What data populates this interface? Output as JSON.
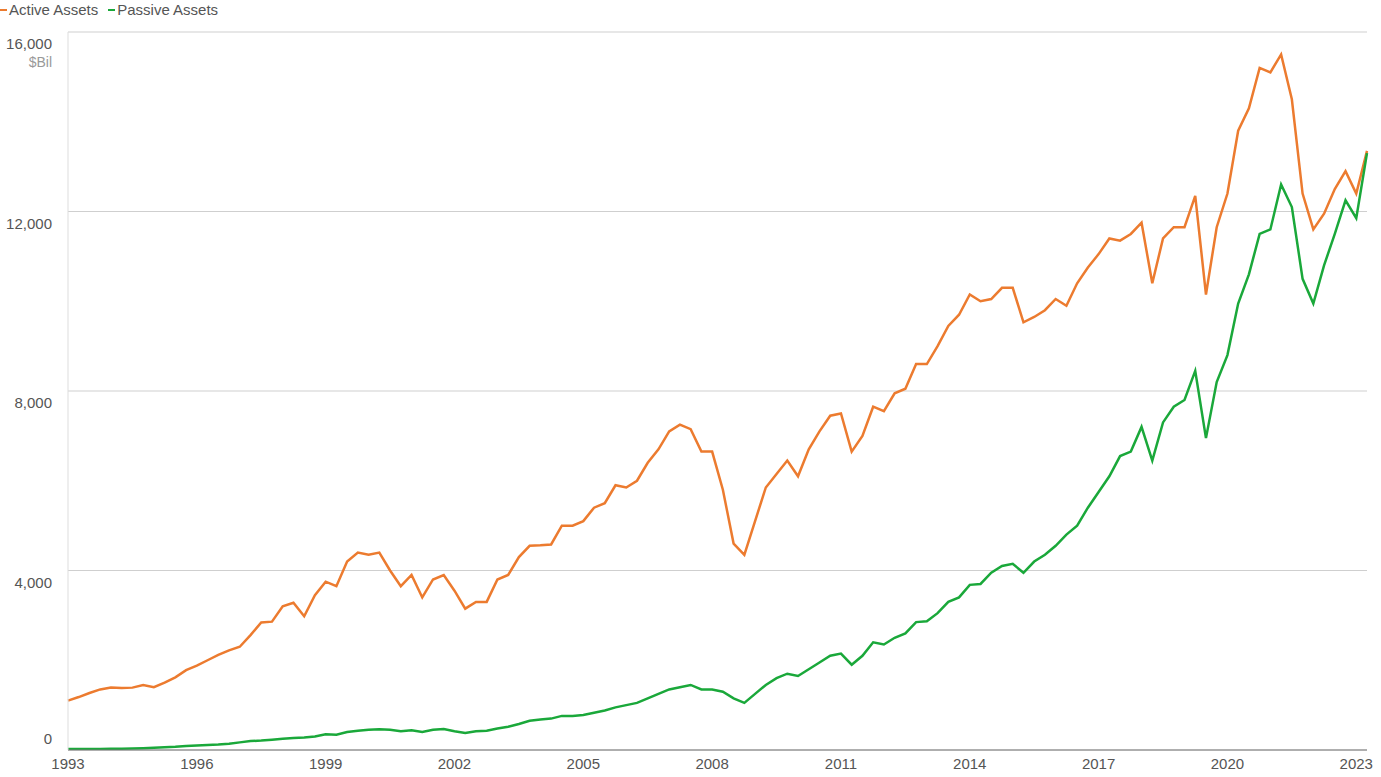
{
  "chart_data": {
    "type": "line",
    "y_label": "$Bil",
    "legend": "top-left",
    "grid": true,
    "categories": [
      "1993",
      null,
      null,
      null,
      null,
      null,
      null,
      null,
      null,
      null,
      null,
      null,
      "1996",
      null,
      null,
      null,
      null,
      null,
      null,
      null,
      null,
      null,
      null,
      null,
      "1999",
      null,
      null,
      null,
      null,
      null,
      null,
      null,
      null,
      null,
      null,
      null,
      "2002",
      null,
      null,
      null,
      null,
      null,
      null,
      null,
      null,
      null,
      null,
      null,
      "2005",
      null,
      null,
      null,
      null,
      null,
      null,
      null,
      null,
      null,
      null,
      null,
      "2008",
      null,
      null,
      null,
      null,
      null,
      null,
      null,
      null,
      null,
      null,
      null,
      "2011",
      null,
      null,
      null,
      null,
      null,
      null,
      null,
      null,
      null,
      null,
      null,
      "2014",
      null,
      null,
      null,
      null,
      null,
      null,
      null,
      null,
      null,
      null,
      null,
      "2017",
      null,
      null,
      null,
      null,
      null,
      null,
      null,
      null,
      null,
      null,
      null,
      "2020",
      null,
      null,
      null,
      null,
      null,
      null,
      null,
      null,
      null,
      null,
      null,
      "2023",
      null
    ],
    "series": [
      {
        "name": "Active Assets",
        "color": "#ec7b2f",
        "values": [
          1100,
          1180,
          1270,
          1350,
          1390,
          1380,
          1390,
          1450,
          1400,
          1500,
          1620,
          1780,
          1880,
          2000,
          2120,
          2220,
          2300,
          2560,
          2840,
          2860,
          3200,
          3280,
          2980,
          3450,
          3750,
          3650,
          4200,
          4400,
          4350,
          4400,
          4000,
          3650,
          3900,
          3400,
          3800,
          3900,
          3550,
          3150,
          3300,
          3300,
          3800,
          3900,
          4300,
          4550,
          4560,
          4580,
          5000,
          5000,
          5100,
          5400,
          5500,
          5900,
          5850,
          6000,
          6400,
          6700,
          7100,
          7250,
          7150,
          6650,
          6650,
          5800,
          4600,
          4350,
          5100,
          5850,
          6150,
          6450,
          6100,
          6700,
          7100,
          7450,
          7500,
          6650,
          7000,
          7650,
          7550,
          7950,
          8050,
          8600,
          8600,
          9000,
          9450,
          9700,
          10150,
          10000,
          10050,
          10300,
          10300,
          9530,
          9650,
          9800,
          10050,
          9900,
          10400,
          10750,
          11050,
          11400,
          11350,
          11500,
          11750,
          10400,
          11400,
          11650,
          11650,
          12350,
          10150,
          11650,
          12400,
          13800,
          14300,
          15200,
          15100,
          15500,
          14500,
          12400,
          11600,
          11950,
          12500,
          12900,
          12400,
          13350
        ]
      },
      {
        "name": "Passive Assets",
        "color": "#1aa83a",
        "values": [
          20,
          20,
          20,
          25,
          30,
          30,
          35,
          40,
          50,
          60,
          70,
          90,
          100,
          110,
          120,
          140,
          170,
          200,
          210,
          230,
          250,
          270,
          280,
          300,
          350,
          340,
          400,
          430,
          450,
          460,
          450,
          420,
          440,
          400,
          450,
          470,
          420,
          380,
          420,
          430,
          480,
          520,
          580,
          650,
          680,
          700,
          760,
          760,
          780,
          830,
          880,
          950,
          1000,
          1050,
          1150,
          1250,
          1350,
          1400,
          1450,
          1350,
          1350,
          1300,
          1150,
          1050,
          1250,
          1450,
          1600,
          1700,
          1650,
          1800,
          1950,
          2100,
          2150,
          1900,
          2100,
          2400,
          2350,
          2500,
          2600,
          2850,
          2870,
          3050,
          3300,
          3400,
          3680,
          3700,
          3950,
          4100,
          4150,
          3950,
          4200,
          4350,
          4550,
          4800,
          5000,
          5400,
          5750,
          6100,
          6550,
          6650,
          7200,
          6450,
          7300,
          7650,
          7800,
          8450,
          6950,
          8200,
          8800,
          9950,
          10600,
          11500,
          11600,
          12600,
          12100,
          10500,
          9950,
          10800,
          11500,
          12250,
          11850,
          13300
        ]
      }
    ],
    "ylim": [
      0,
      16000
    ],
    "yticks": [
      0,
      {
        "value": 4000,
        "label": "4,000"
      },
      {
        "value": 8000,
        "label": "8,000"
      },
      {
        "value": 12000,
        "label": "12,000"
      },
      {
        "value": 16000,
        "label": "16,000"
      }
    ]
  }
}
